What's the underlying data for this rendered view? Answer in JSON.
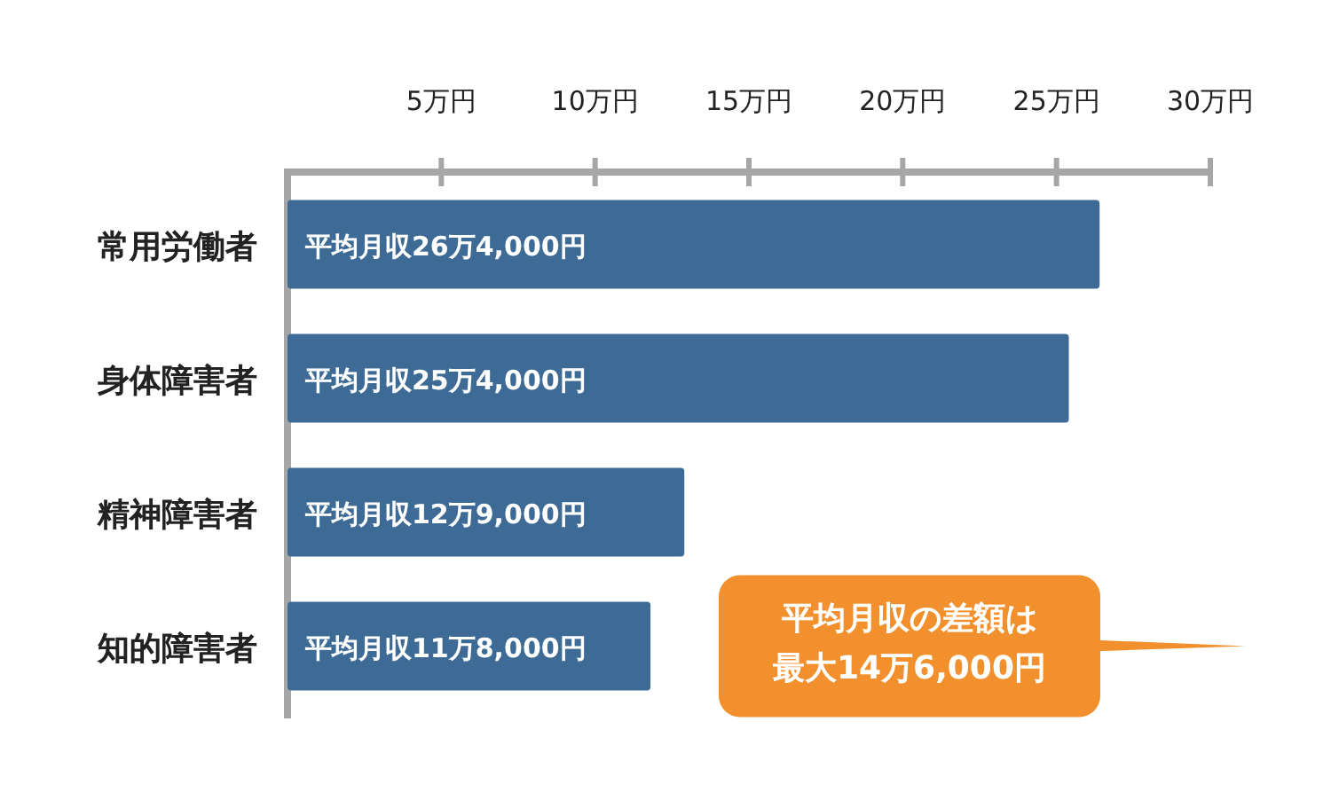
{
  "chart_data": {
    "type": "bar",
    "orientation": "horizontal",
    "categories": [
      "常用労働者",
      "身体障害者",
      "精神障害者",
      "知的障害者"
    ],
    "values": [
      26.4,
      25.4,
      12.9,
      11.8
    ],
    "color": "#3d6b95",
    "xlim": [
      0,
      30
    ],
    "xticks": [
      {
        "value": 5,
        "label": "5万円"
      },
      {
        "value": 10,
        "label": "10万円"
      },
      {
        "value": 15,
        "label": "15万円"
      },
      {
        "value": 20,
        "label": "20万円"
      },
      {
        "value": 25,
        "label": "25万円"
      },
      {
        "value": 30,
        "label": "30万円"
      }
    ],
    "value_labels": [
      "平均月収26万4,000円",
      "平均月収25万4,000円",
      "平均月収12万9,000円",
      "平均月収11万8,000円"
    ],
    "annotations": [
      "平均月収の差額は最大14万6,000円"
    ]
  }
}
